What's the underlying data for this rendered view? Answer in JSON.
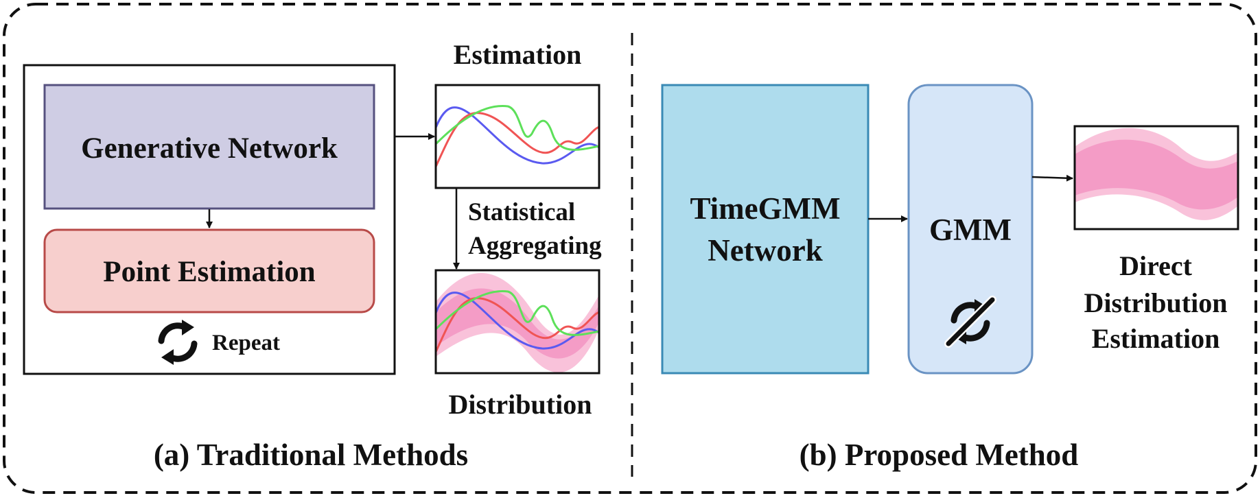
{
  "traditional": {
    "generative_network": "Generative Network",
    "point_estimation": "Point Estimation",
    "repeat": "Repeat",
    "estimation": "Estimation",
    "statistical": "Statistical",
    "aggregating": "Aggregating",
    "distribution": "Distribution",
    "caption": "(a) Traditional Methods"
  },
  "proposed": {
    "timegmm_line1": "TimeGMM",
    "timegmm_line2": "Network",
    "gmm": "GMM",
    "direct_line1": "Direct",
    "direct_line2": "Distribution",
    "direct_line3": "Estimation",
    "caption": "(b) Proposed Method"
  },
  "colors": {
    "generative_fill": "#cfcde4",
    "generative_stroke": "#56517f",
    "point_fill": "#f7cfcd",
    "point_stroke": "#b84a48",
    "timegmm_fill": "#aedced",
    "timegmm_stroke": "#3a8ab5",
    "gmm_fill": "#d6e6f8",
    "gmm_stroke": "#6a93c4",
    "band_outer": "#f9c2da",
    "band_inner": "#f49cc6",
    "curve_blue": "#5a5af0",
    "curve_red": "#f05454",
    "curve_green": "#5de05a"
  },
  "icons": {
    "repeat": "repeat-icon",
    "no_repeat": "no-repeat-icon"
  }
}
